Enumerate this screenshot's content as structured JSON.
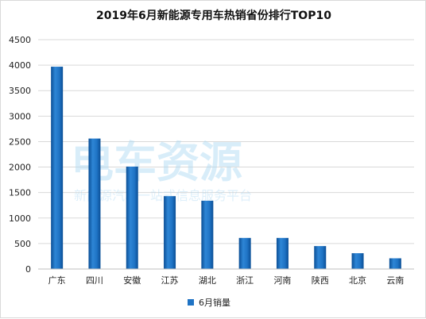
{
  "chart_data": {
    "type": "bar",
    "title": "2019年6月新能源专用车热销省份排行TOP10",
    "categories": [
      "广东",
      "四川",
      "安徽",
      "江苏",
      "湖北",
      "浙江",
      "河南",
      "陕西",
      "北京",
      "云南"
    ],
    "series": [
      {
        "name": "6月销量",
        "values": [
          3970,
          2560,
          2010,
          1430,
          1340,
          610,
          610,
          450,
          310,
          210
        ],
        "color": "#1f73c4"
      }
    ],
    "xlabel": "",
    "ylabel": "",
    "ylim": [
      0,
      4500
    ],
    "yticks": [
      "0",
      "500",
      "1000",
      "1500",
      "2000",
      "2500",
      "3000",
      "3500",
      "4000",
      "4500"
    ],
    "grid": true,
    "legend": "bottom-center",
    "watermark": {
      "main": "电车资源",
      "sub": "新能源汽车一站式信息服务平台"
    }
  }
}
